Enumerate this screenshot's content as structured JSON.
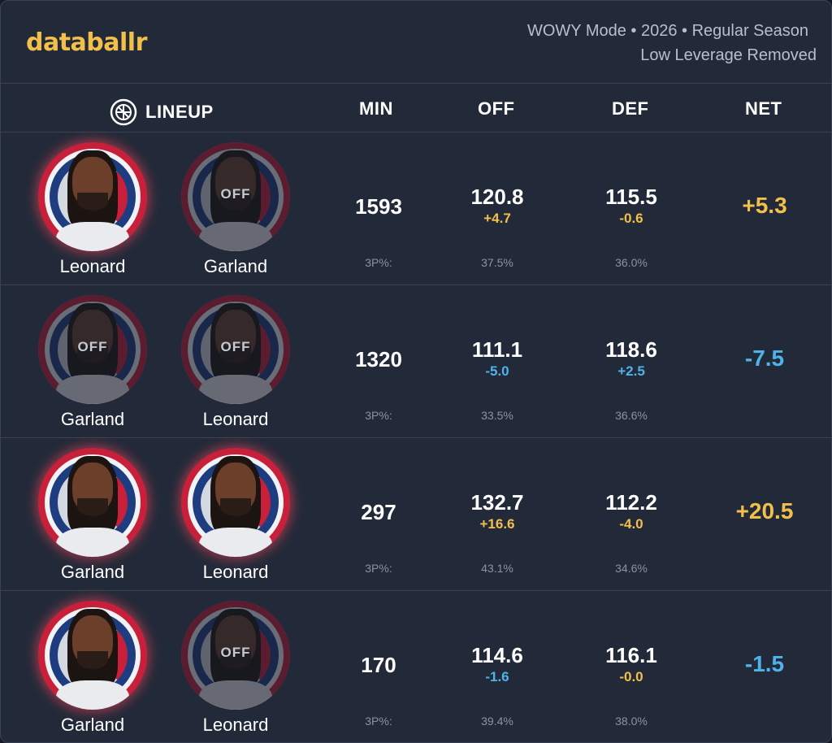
{
  "brand": "databallr",
  "subtitle": {
    "line1": "WOWY Mode • 2026 • Regular Season",
    "line2": "Low Leverage Removed"
  },
  "columns": {
    "lineup": "LINEUP",
    "min": "MIN",
    "off": "OFF",
    "def": "DEF",
    "net": "NET"
  },
  "colors": {
    "accent": "#f2c04a",
    "negative": "#4fb3ea",
    "background": "#222a39",
    "team_red": "#c8203a",
    "team_blue": "#1d3d80"
  },
  "off_label": "OFF",
  "three_pt_label": "3P%:",
  "rows": [
    {
      "players": [
        {
          "name": "Leonard",
          "status": "on"
        },
        {
          "name": "Garland",
          "status": "off"
        }
      ],
      "min": "1593",
      "off": "120.8",
      "off_diff": "+4.7",
      "off_diff_sign": "pos",
      "def": "115.5",
      "def_diff": "-0.6",
      "def_diff_sign": "pos",
      "net": "+5.3",
      "net_sign": "pos",
      "off_3p": "37.5%",
      "def_3p": "36.0%"
    },
    {
      "players": [
        {
          "name": "Garland",
          "status": "off"
        },
        {
          "name": "Leonard",
          "status": "off"
        }
      ],
      "min": "1320",
      "off": "111.1",
      "off_diff": "-5.0",
      "off_diff_sign": "neg",
      "def": "118.6",
      "def_diff": "+2.5",
      "def_diff_sign": "neg",
      "net": "-7.5",
      "net_sign": "neg",
      "off_3p": "33.5%",
      "def_3p": "36.6%"
    },
    {
      "players": [
        {
          "name": "Garland",
          "status": "on"
        },
        {
          "name": "Leonard",
          "status": "on"
        }
      ],
      "min": "297",
      "off": "132.7",
      "off_diff": "+16.6",
      "off_diff_sign": "pos",
      "def": "112.2",
      "def_diff": "-4.0",
      "def_diff_sign": "pos",
      "net": "+20.5",
      "net_sign": "pos",
      "off_3p": "43.1%",
      "def_3p": "34.6%"
    },
    {
      "players": [
        {
          "name": "Garland",
          "status": "on"
        },
        {
          "name": "Leonard",
          "status": "off"
        }
      ],
      "min": "170",
      "off": "114.6",
      "off_diff": "-1.6",
      "off_diff_sign": "neg",
      "def": "116.1",
      "def_diff": "-0.0",
      "def_diff_sign": "pos",
      "net": "-1.5",
      "net_sign": "neg",
      "off_3p": "39.4%",
      "def_3p": "38.0%"
    }
  ]
}
